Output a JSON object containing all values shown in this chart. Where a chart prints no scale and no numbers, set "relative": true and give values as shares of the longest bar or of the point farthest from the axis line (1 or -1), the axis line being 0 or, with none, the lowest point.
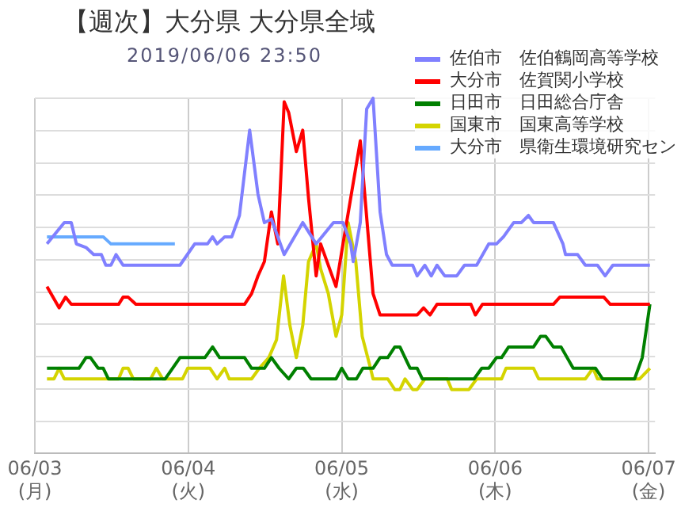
{
  "chart_data": {
    "type": "line",
    "title": "【週次】大分県 大分県全域",
    "subtitle": "2019/06/06 23:50",
    "relative": true,
    "grid": true,
    "legend": "top right",
    "marker": "none",
    "line_style": "solid",
    "xlim": [
      "2019-06-03",
      "2019-06-07T01:00"
    ],
    "xticks": [
      {
        "value": "2019-06-03",
        "label": "06/03\n(月)"
      },
      {
        "value": "2019-06-04",
        "label": "06/04\n(火)"
      },
      {
        "value": "2019-06-05",
        "label": "06/05\n(水)"
      },
      {
        "value": "2019-06-06",
        "label": "06/06\n(木)"
      },
      {
        "value": "2019-06-07",
        "label": "06/07\n(金)"
      }
    ],
    "series": [
      {
        "name": "佐伯市　佐伯鶴岡高等学校",
        "color": "#8080ff",
        "x": [
          "2019-06-03T01:54",
          "2019-06-03T04:36",
          "2019-06-03T05:42",
          "2019-06-03T06:30",
          "2019-06-03T08:00",
          "2019-06-03T09:12",
          "2019-06-03T10:24",
          "2019-06-03T11:06",
          "2019-06-03T11:54",
          "2019-06-03T12:42",
          "2019-06-03T13:48",
          "2019-06-03T22:42",
          "2019-06-04T01:00",
          "2019-06-04T03:00",
          "2019-06-04T03:48",
          "2019-06-04T04:30",
          "2019-06-04T05:42",
          "2019-06-04T06:48",
          "2019-06-04T08:00",
          "2019-06-04T09:36",
          "2019-06-04T10:54",
          "2019-06-04T11:54",
          "2019-06-04T13:00",
          "2019-06-04T15:00",
          "2019-06-04T17:54",
          "2019-06-04T20:00",
          "2019-06-04T22:42",
          "2019-06-05T00:12",
          "2019-06-05T01:24",
          "2019-06-05T01:48",
          "2019-06-05T02:54",
          "2019-06-05T03:54",
          "2019-06-05T04:54",
          "2019-06-05T06:00",
          "2019-06-05T07:00",
          "2019-06-05T07:54",
          "2019-06-05T11:06",
          "2019-06-05T11:48",
          "2019-06-05T13:00",
          "2019-06-05T14:00",
          "2019-06-05T14:54",
          "2019-06-05T16:06",
          "2019-06-05T18:00",
          "2019-06-05T19:12",
          "2019-06-05T21:06",
          "2019-06-05T23:00",
          "2019-06-06T00:12",
          "2019-06-06T01:18",
          "2019-06-06T02:54",
          "2019-06-06T04:06",
          "2019-06-06T05:12",
          "2019-06-06T06:00",
          "2019-06-06T09:06",
          "2019-06-06T10:36",
          "2019-06-06T11:00",
          "2019-06-06T12:54",
          "2019-06-06T14:06",
          "2019-06-06T16:00",
          "2019-06-06T17:12",
          "2019-06-06T18:24",
          "2019-06-07T00:12"
        ],
        "values": [
          0.59,
          0.65,
          0.65,
          0.59,
          0.58,
          0.56,
          0.56,
          0.53,
          0.53,
          0.56,
          0.53,
          0.53,
          0.59,
          0.59,
          0.61,
          0.59,
          0.61,
          0.61,
          0.67,
          0.91,
          0.73,
          0.65,
          0.66,
          0.56,
          0.65,
          0.59,
          0.65,
          0.65,
          0.59,
          0.54,
          0.65,
          0.97,
          1.0,
          0.68,
          0.56,
          0.53,
          0.53,
          0.5,
          0.53,
          0.5,
          0.53,
          0.5,
          0.5,
          0.53,
          0.53,
          0.59,
          0.59,
          0.61,
          0.65,
          0.65,
          0.67,
          0.65,
          0.65,
          0.59,
          0.56,
          0.56,
          0.53,
          0.53,
          0.5,
          0.53,
          0.53
        ]
      },
      {
        "name": "大分市　佐賀関小学校",
        "color": "#ff0000",
        "x": [
          "2019-06-03T01:54",
          "2019-06-03T03:48",
          "2019-06-03T04:48",
          "2019-06-03T05:42",
          "2019-06-03T13:06",
          "2019-06-03T13:48",
          "2019-06-03T14:36",
          "2019-06-03T15:48",
          "2019-06-04T08:48",
          "2019-06-04T09:54",
          "2019-06-04T10:54",
          "2019-06-04T11:54",
          "2019-06-04T13:00",
          "2019-06-04T14:00",
          "2019-06-04T15:00",
          "2019-06-04T15:42",
          "2019-06-04T16:54",
          "2019-06-04T17:54",
          "2019-06-04T18:48",
          "2019-06-04T20:00",
          "2019-06-04T20:42",
          "2019-06-04T23:06",
          "2019-06-05T00:12",
          "2019-06-05T02:54",
          "2019-06-05T04:54",
          "2019-06-05T06:00",
          "2019-06-05T11:48",
          "2019-06-05T12:48",
          "2019-06-05T13:48",
          "2019-06-05T14:54",
          "2019-06-05T20:12",
          "2019-06-05T20:54",
          "2019-06-05T22:00",
          "2019-06-06T09:06",
          "2019-06-06T10:06",
          "2019-06-06T17:00",
          "2019-06-06T18:00",
          "2019-06-07T00:12"
        ],
        "values": [
          0.47,
          0.41,
          0.44,
          0.42,
          0.42,
          0.44,
          0.44,
          0.42,
          0.42,
          0.45,
          0.5,
          0.54,
          0.68,
          0.59,
          0.99,
          0.96,
          0.85,
          0.91,
          0.72,
          0.5,
          0.59,
          0.47,
          0.59,
          0.88,
          0.45,
          0.39,
          0.39,
          0.41,
          0.39,
          0.42,
          0.42,
          0.39,
          0.42,
          0.42,
          0.44,
          0.44,
          0.42,
          0.42
        ]
      },
      {
        "name": "日田市　日田総合庁舎",
        "color": "#008000",
        "x": [
          "2019-06-03T01:54",
          "2019-06-03T06:54",
          "2019-06-03T08:00",
          "2019-06-03T08:42",
          "2019-06-03T09:54",
          "2019-06-03T10:42",
          "2019-06-03T11:30",
          "2019-06-03T20:24",
          "2019-06-03T22:42",
          "2019-06-04T02:36",
          "2019-06-04T03:48",
          "2019-06-04T04:54",
          "2019-06-04T08:48",
          "2019-06-04T09:54",
          "2019-06-04T11:54",
          "2019-06-04T13:00",
          "2019-06-04T14:12",
          "2019-06-04T15:42",
          "2019-06-04T16:54",
          "2019-06-04T18:00",
          "2019-06-04T19:12",
          "2019-06-04T23:06",
          "2019-06-05T00:00",
          "2019-06-05T01:00",
          "2019-06-05T02:18",
          "2019-06-05T03:18",
          "2019-06-05T04:54",
          "2019-06-05T06:00",
          "2019-06-05T07:12",
          "2019-06-05T08:18",
          "2019-06-05T09:06",
          "2019-06-05T10:42",
          "2019-06-05T11:48",
          "2019-06-05T12:36",
          "2019-06-05T20:42",
          "2019-06-05T21:54",
          "2019-06-05T23:00",
          "2019-06-06T00:12",
          "2019-06-06T01:00",
          "2019-06-06T02:06",
          "2019-06-06T06:00",
          "2019-06-06T07:06",
          "2019-06-06T07:54",
          "2019-06-06T09:06",
          "2019-06-06T10:18",
          "2019-06-06T12:12",
          "2019-06-06T15:42",
          "2019-06-06T16:48",
          "2019-06-06T21:48",
          "2019-06-06T23:00",
          "2019-06-07T00:12"
        ],
        "values": [
          0.24,
          0.24,
          0.27,
          0.27,
          0.24,
          0.24,
          0.21,
          0.21,
          0.27,
          0.27,
          0.3,
          0.27,
          0.27,
          0.24,
          0.24,
          0.27,
          0.24,
          0.21,
          0.24,
          0.24,
          0.21,
          0.21,
          0.24,
          0.21,
          0.21,
          0.24,
          0.24,
          0.27,
          0.27,
          0.3,
          0.3,
          0.24,
          0.24,
          0.21,
          0.21,
          0.24,
          0.24,
          0.27,
          0.27,
          0.3,
          0.3,
          0.33,
          0.33,
          0.3,
          0.3,
          0.24,
          0.24,
          0.21,
          0.21,
          0.27,
          0.42
        ]
      },
      {
        "name": "国東市　国東高等学校",
        "color": "#d4d400",
        "x": [
          "2019-06-03T01:54",
          "2019-06-03T03:00",
          "2019-06-03T03:48",
          "2019-06-03T04:36",
          "2019-06-03T13:06",
          "2019-06-03T13:48",
          "2019-06-03T14:36",
          "2019-06-03T15:24",
          "2019-06-03T18:06",
          "2019-06-03T19:00",
          "2019-06-03T20:00",
          "2019-06-03T23:06",
          "2019-06-03T23:54",
          "2019-06-04T03:24",
          "2019-06-04T04:30",
          "2019-06-04T05:42",
          "2019-06-04T06:24",
          "2019-06-04T09:54",
          "2019-06-04T11:06",
          "2019-06-04T12:36",
          "2019-06-04T13:48",
          "2019-06-04T14:54",
          "2019-06-04T15:54",
          "2019-06-04T16:54",
          "2019-06-04T17:54",
          "2019-06-04T18:48",
          "2019-06-04T20:00",
          "2019-06-04T20:42",
          "2019-06-04T21:54",
          "2019-06-04T23:06",
          "2019-06-05T00:00",
          "2019-06-05T01:00",
          "2019-06-05T02:12",
          "2019-06-05T03:12",
          "2019-06-05T04:30",
          "2019-06-05T04:54",
          "2019-06-05T07:12",
          "2019-06-05T08:18",
          "2019-06-05T09:06",
          "2019-06-05T09:54",
          "2019-06-05T11:06",
          "2019-06-05T11:48",
          "2019-06-05T13:00",
          "2019-06-05T16:30",
          "2019-06-05T17:12",
          "2019-06-05T19:54",
          "2019-06-05T21:06",
          "2019-06-06T01:00",
          "2019-06-06T01:42",
          "2019-06-06T06:00",
          "2019-06-06T06:48",
          "2019-06-06T14:06",
          "2019-06-06T15:18",
          "2019-06-06T16:00",
          "2019-06-06T22:36",
          "2019-06-07T00:12"
        ],
        "values": [
          0.21,
          0.21,
          0.24,
          0.21,
          0.21,
          0.24,
          0.24,
          0.21,
          0.21,
          0.24,
          0.21,
          0.21,
          0.24,
          0.24,
          0.21,
          0.24,
          0.21,
          0.21,
          0.24,
          0.27,
          0.32,
          0.5,
          0.36,
          0.27,
          0.36,
          0.54,
          0.59,
          0.52,
          0.45,
          0.33,
          0.39,
          0.65,
          0.54,
          0.33,
          0.24,
          0.21,
          0.21,
          0.18,
          0.18,
          0.21,
          0.18,
          0.18,
          0.21,
          0.21,
          0.18,
          0.18,
          0.21,
          0.21,
          0.24,
          0.24,
          0.21,
          0.21,
          0.24,
          0.21,
          0.21,
          0.24
        ]
      },
      {
        "name": "大分市　県衛生環境研究セン",
        "color": "#66aaff",
        "x": [
          "2019-06-03T01:54",
          "2019-06-03T10:42",
          "2019-06-03T11:54",
          "2019-06-03T21:54"
        ],
        "values": [
          0.61,
          0.61,
          0.59,
          0.59
        ]
      }
    ]
  }
}
